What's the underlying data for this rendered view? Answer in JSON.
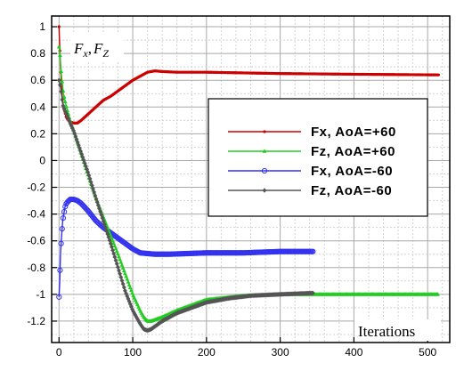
{
  "chart_data": {
    "type": "line",
    "title": "",
    "ylabel": "",
    "ylabel_main": "F",
    "ylabel_sub1": "x",
    "ylabel_comma": ",",
    "ylabel_sub2": "Z",
    "xlabel": "Iterations",
    "xlim": [
      -10,
      530
    ],
    "ylim": [
      -1.36,
      1.08
    ],
    "xticks": [
      0,
      100,
      200,
      300,
      400,
      500
    ],
    "xtick_labels": [
      "0",
      "100",
      "200",
      "300",
      "400",
      "500"
    ],
    "yticks": [
      1,
      0.8,
      0.6,
      0.4,
      0.2,
      0,
      -0.2,
      -0.4,
      -0.6,
      -0.8,
      -1,
      -1.2
    ],
    "ytick_labels": [
      "1",
      "0.8",
      "0.6",
      "0.4",
      "0.2",
      "0",
      "-0.2",
      "-0.4",
      "-0.6",
      "-0.8",
      "-1",
      "-1.2"
    ],
    "grid": true,
    "legend_placement": "right",
    "series": [
      {
        "name": "Fx, AoA=+60",
        "color": "#cc0000",
        "marker": "dot",
        "x": [
          0,
          1,
          2,
          4,
          6,
          10,
          15,
          20,
          25,
          30,
          40,
          50,
          60,
          70,
          80,
          90,
          100,
          110,
          120,
          130,
          140,
          160,
          200,
          250,
          300,
          400,
          515
        ],
        "y": [
          1.0,
          0.85,
          0.7,
          0.5,
          0.4,
          0.32,
          0.29,
          0.28,
          0.28,
          0.3,
          0.35,
          0.4,
          0.45,
          0.48,
          0.52,
          0.56,
          0.6,
          0.63,
          0.66,
          0.67,
          0.665,
          0.66,
          0.66,
          0.655,
          0.65,
          0.645,
          0.64
        ]
      },
      {
        "name": "Fz, AoA=+60",
        "color": "#22cc22",
        "marker": "triangle",
        "x": [
          0,
          1,
          3,
          6,
          10,
          15,
          20,
          30,
          40,
          50,
          60,
          70,
          80,
          90,
          100,
          110,
          115,
          120,
          125,
          130,
          140,
          160,
          200,
          250,
          300,
          400,
          515
        ],
        "y": [
          0.85,
          0.82,
          0.65,
          0.5,
          0.4,
          0.3,
          0.22,
          0.05,
          -0.12,
          -0.28,
          -0.42,
          -0.56,
          -0.7,
          -0.85,
          -1.0,
          -1.12,
          -1.17,
          -1.2,
          -1.2,
          -1.19,
          -1.17,
          -1.12,
          -1.04,
          -1.01,
          -1.0,
          -1.0,
          -1.0
        ]
      },
      {
        "name": "Fx, AoA=-60",
        "color": "#3333ee",
        "marker": "circle",
        "x": [
          0,
          1,
          2,
          3,
          5,
          8,
          10,
          15,
          20,
          25,
          30,
          40,
          50,
          60,
          70,
          80,
          90,
          100,
          110,
          130,
          150,
          200,
          250,
          300,
          345
        ],
        "y": [
          -1.02,
          -0.9,
          -0.7,
          -0.6,
          -0.45,
          -0.35,
          -0.32,
          -0.29,
          -0.29,
          -0.3,
          -0.32,
          -0.38,
          -0.45,
          -0.5,
          -0.54,
          -0.58,
          -0.62,
          -0.66,
          -0.69,
          -0.7,
          -0.7,
          -0.69,
          -0.69,
          -0.68,
          -0.68
        ]
      },
      {
        "name": "Fz, AoA=-60",
        "color": "#555555",
        "marker": "diamond",
        "x": [
          0,
          2,
          5,
          8,
          10,
          15,
          20,
          30,
          40,
          50,
          60,
          70,
          80,
          90,
          100,
          110,
          115,
          120,
          125,
          130,
          140,
          150,
          160,
          180,
          200,
          230,
          260,
          300,
          345
        ],
        "y": [
          0.6,
          0.55,
          0.42,
          0.37,
          0.35,
          0.28,
          0.22,
          0.06,
          -0.1,
          -0.28,
          -0.45,
          -0.62,
          -0.8,
          -0.98,
          -1.12,
          -1.22,
          -1.26,
          -1.27,
          -1.26,
          -1.24,
          -1.2,
          -1.17,
          -1.14,
          -1.1,
          -1.06,
          -1.03,
          -1.01,
          -1.0,
          -0.99
        ]
      }
    ]
  }
}
